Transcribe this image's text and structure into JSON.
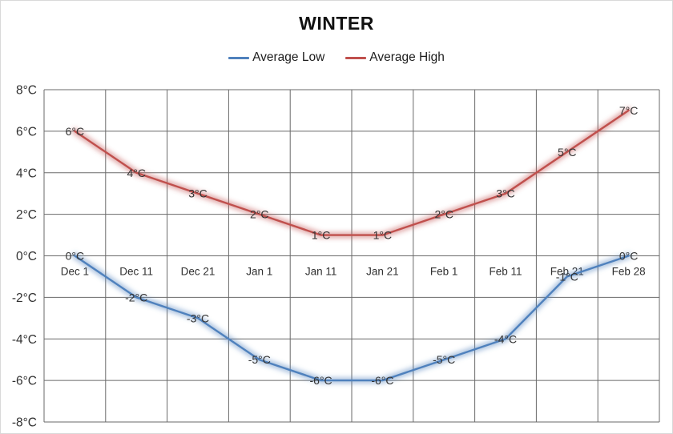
{
  "window": {
    "background": "#ffffff",
    "border_color": "#d9d9d9"
  },
  "chart_data": {
    "type": "line",
    "title": "WINTER",
    "categories": [
      "Dec 1",
      "Dec 11",
      "Dec 21",
      "Jan 1",
      "Jan 11",
      "Jan 21",
      "Feb 1",
      "Feb 11",
      "Feb 21",
      "Feb 28"
    ],
    "series": [
      {
        "name": "Average Low",
        "color": "#4F81BD",
        "values": [
          0,
          -2,
          -3,
          -5,
          -6,
          -6,
          -5,
          -4,
          -1,
          0
        ],
        "data_labels": [
          "0°C",
          "-2°C",
          "-3°C",
          "-5°C",
          "-6°C",
          "-6°C",
          "-5°C",
          "-4°C",
          "-1°C",
          "0°C"
        ]
      },
      {
        "name": "Average High",
        "color": "#C0504D",
        "values": [
          6,
          4,
          3,
          2,
          1,
          1,
          2,
          3,
          5,
          7
        ],
        "data_labels": [
          "6°C",
          "4°C",
          "3°C",
          "2°C",
          "1°C",
          "1°C",
          "2°C",
          "3°C",
          "5°C",
          "7°C"
        ]
      }
    ],
    "unit": "°C",
    "ylim": [
      -8,
      8
    ],
    "y_tick_step": 2,
    "y_tick_labels": [
      "8°C",
      "6°C",
      "4°C",
      "2°C",
      "0°C",
      "-2°C",
      "-4°C",
      "-6°C",
      "-8°C"
    ],
    "grid": true,
    "gridline_color": "#6a6a6a",
    "axis_label_color": "#303030",
    "data_label_color": "#333333",
    "legend_position": "top"
  }
}
